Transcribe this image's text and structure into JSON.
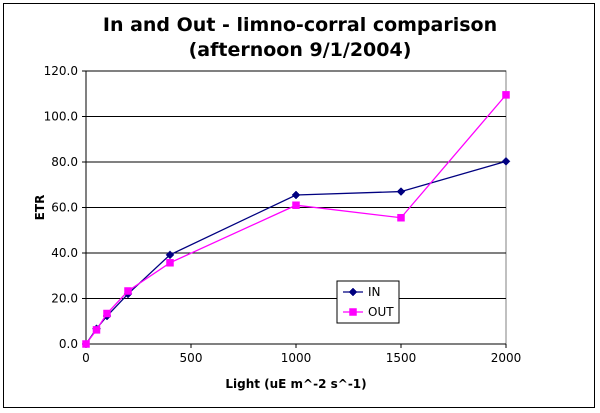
{
  "chart_data": {
    "type": "line",
    "title_line1": "In and Out - limno-corral comparison",
    "title_line2": "(afternoon 9/1/2004)",
    "xlabel": "Light (uE m^-2 s^-1)",
    "ylabel": "ETR",
    "xlim": [
      0,
      2000
    ],
    "ylim": [
      0,
      120
    ],
    "x_ticks": [
      0,
      500,
      1000,
      1500,
      2000
    ],
    "y_ticks": [
      "0.0",
      "20.0",
      "40.0",
      "60.0",
      "80.0",
      "100.0",
      "120.0"
    ],
    "grid": "horizontal major gridlines",
    "legend_position": "lower-right inside plot",
    "series": [
      {
        "name": "IN",
        "color": "#000080",
        "marker": "diamond",
        "x": [
          0,
          50,
          100,
          200,
          400,
          1000,
          1500,
          2000
        ],
        "y": [
          0.0,
          6.7,
          12.3,
          22.0,
          39.2,
          65.5,
          67.0,
          80.3
        ]
      },
      {
        "name": "OUT",
        "color": "#ff00ff",
        "marker": "square",
        "x": [
          0,
          50,
          100,
          200,
          400,
          1000,
          1500,
          2000
        ],
        "y": [
          0.0,
          6.2,
          13.4,
          23.3,
          35.7,
          61.0,
          55.5,
          109.5
        ]
      }
    ]
  }
}
